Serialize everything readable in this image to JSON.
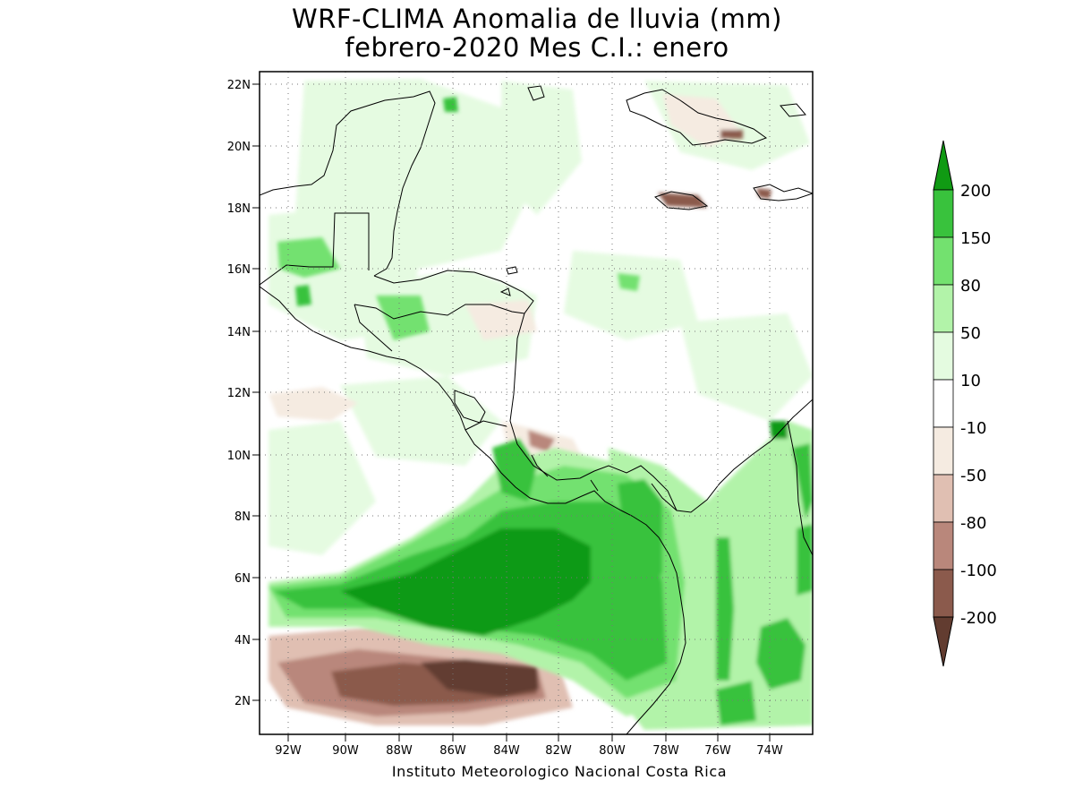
{
  "title": {
    "line1": "WRF-CLIMA Anomalia de lluvia (mm)",
    "line2": "febrero-2020 Mes C.I.: enero"
  },
  "map": {
    "lon_labels": [
      "92W",
      "90W",
      "88W",
      "86W",
      "84W",
      "82W",
      "80W",
      "78W",
      "76W",
      "74W"
    ],
    "lat_labels": [
      "22N",
      "20N",
      "18N",
      "16N",
      "14N",
      "12N",
      "10N",
      "8N",
      "6N",
      "4N",
      "2N"
    ],
    "grid": "dotted"
  },
  "colorbar": {
    "labels": [
      "200",
      "150",
      "80",
      "50",
      "10",
      "-10",
      "-50",
      "-80",
      "-100",
      "-200"
    ],
    "colors": [
      "#109a13",
      "#39c23d",
      "#73e16f",
      "#b2f3a9",
      "#e4fbe0",
      "#ffffff",
      "#f5ebe1",
      "#e0bfb2",
      "#b9877b",
      "#8b5a4c",
      "#623c30"
    ]
  },
  "credit": "Instituto Meteorologico Nacional Costa Rica"
}
